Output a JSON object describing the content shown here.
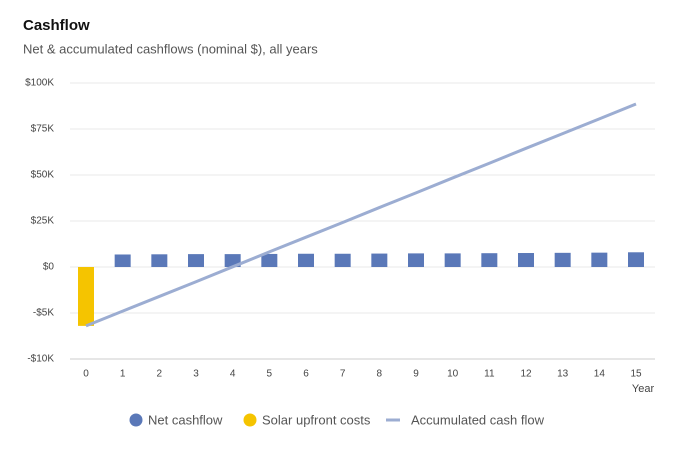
{
  "chart_data": {
    "type": "bar",
    "title": "Cashflow",
    "subtitle": "Net & accumulated cashflows (nominal $), all years",
    "xlabel": "Year",
    "categories": [
      "0",
      "1",
      "2",
      "3",
      "4",
      "5",
      "6",
      "7",
      "8",
      "9",
      "10",
      "11",
      "12",
      "13",
      "14",
      "15"
    ],
    "series": [
      {
        "name": "Net cashflow",
        "type": "bar",
        "color": "#5a78b8",
        "values": [
          null,
          6800,
          6900,
          7000,
          7000,
          7100,
          7200,
          7200,
          7300,
          7400,
          7400,
          7500,
          7600,
          7700,
          7800,
          8000
        ]
      },
      {
        "name": "Solar upfront costs",
        "type": "bar",
        "color": "#f5c400",
        "values": [
          -6400,
          null,
          null,
          null,
          null,
          null,
          null,
          null,
          null,
          null,
          null,
          null,
          null,
          null,
          null,
          null
        ]
      },
      {
        "name": "Accumulated cash flow",
        "type": "line",
        "color": "#9cadd2",
        "values": [
          -6400,
          -4800,
          -3200,
          -1600,
          100,
          8200,
          16200,
          24200,
          32300,
          40300,
          48400,
          56400,
          64500,
          72500,
          80500,
          88600
        ]
      }
    ],
    "ylim": [
      -10000,
      100000
    ],
    "yticks": [
      {
        "value": -10000,
        "label": "-$10K"
      },
      {
        "value": -5000,
        "label": "-$5K"
      },
      {
        "value": 0,
        "label": "$0"
      },
      {
        "value": 25000,
        "label": "$25K"
      },
      {
        "value": 50000,
        "label": "$50K"
      },
      {
        "value": 75000,
        "label": "$75K"
      },
      {
        "value": 100000,
        "label": "$100K"
      }
    ],
    "grid": true,
    "legend": "bottom"
  }
}
